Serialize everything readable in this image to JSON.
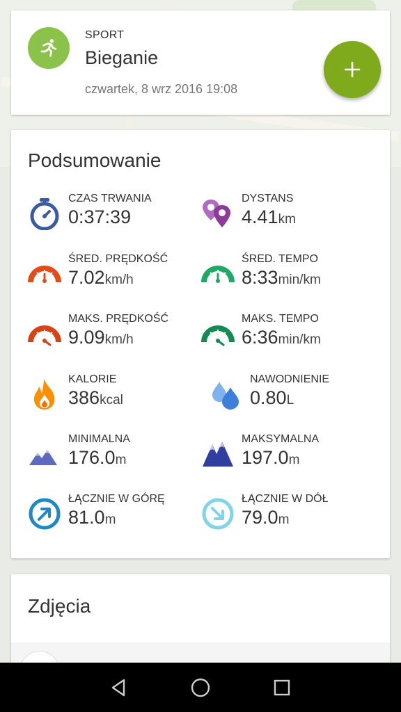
{
  "header": {
    "sport_label": "SPORT",
    "sport_name": "Bieganie",
    "date": "czwartek, 8 wrz 2016 19:08",
    "sport_icon": "running-icon",
    "add_icon": "plus-icon"
  },
  "summary": {
    "title": "Podsumowanie",
    "stats": [
      {
        "label": "CZAS TRWANIA",
        "value": "0:37:39",
        "unit": "",
        "icon": "stopwatch-icon"
      },
      {
        "label": "DYSTANS",
        "value": "4.41",
        "unit": "km",
        "icon": "map-pins-icon"
      },
      {
        "label": "ŚRED. PRĘDKOŚĆ",
        "value": "7.02",
        "unit": "km/h",
        "icon": "speedometer-icon"
      },
      {
        "label": "ŚRED. TEMPO",
        "value": "8:33",
        "unit": "min/km",
        "icon": "pace-gauge-icon"
      },
      {
        "label": "MAKS. PRĘDKOŚĆ",
        "value": "9.09",
        "unit": "km/h",
        "icon": "max-speedometer-icon"
      },
      {
        "label": "MAKS. TEMPO",
        "value": "6:36",
        "unit": "min/km",
        "icon": "max-pace-gauge-icon"
      },
      {
        "label": "KALORIE",
        "value": "386",
        "unit": "kcal",
        "icon": "flame-icon"
      },
      {
        "label": "NAWODNIENIE",
        "value": "0.80",
        "unit": "L",
        "icon": "water-drops-icon"
      },
      {
        "label": "MINIMALNA",
        "value": "176.0",
        "unit": "m",
        "icon": "low-mountains-icon"
      },
      {
        "label": "MAKSYMALNA",
        "value": "197.0",
        "unit": "m",
        "icon": "high-mountains-icon"
      },
      {
        "label": "ŁĄCZNIE W GÓRĘ",
        "value": "81.0",
        "unit": "m",
        "icon": "ascent-icon"
      },
      {
        "label": "ŁĄCZNIE W DÓŁ",
        "value": "79.0",
        "unit": "m",
        "icon": "descent-icon"
      }
    ]
  },
  "photos": {
    "title": "Zdjęcia"
  },
  "colors": {
    "sport_green": "#8bc34a",
    "fab_green": "#7faa1b",
    "stopwatch_blue": "#3b5aa6",
    "distance_purple": "#8e3a9a",
    "speed_red": "#e64a19",
    "pace_green": "#1fa866",
    "flame_orange": "#ff8f00",
    "water_blue": "#4a8fe0",
    "mountain_blue": "#3f51b5",
    "ascent_blue": "#1e88c8",
    "descent_lightblue": "#80d4ea"
  }
}
